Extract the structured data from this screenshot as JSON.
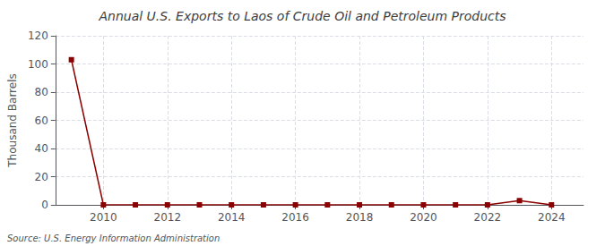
{
  "chart_data": {
    "type": "line",
    "title": "Annual U.S. Exports to Laos of Crude Oil and Petroleum Products",
    "ylabel": "Thousand Barrels",
    "annotation": "Source: U.S. Energy Information Administration",
    "x": [
      2009,
      2010,
      2011,
      2012,
      2013,
      2014,
      2015,
      2016,
      2017,
      2018,
      2019,
      2020,
      2021,
      2022,
      2023,
      2024
    ],
    "values": [
      103,
      0,
      0,
      0,
      0,
      0,
      0,
      0,
      0,
      0,
      0,
      0,
      0,
      0,
      3,
      0
    ],
    "color": "#8b0000",
    "marker": "square",
    "line_style": "solid",
    "xlim": [
      2008.5,
      2025.0
    ],
    "xticks": [
      2010,
      2012,
      2014,
      2016,
      2018,
      2020,
      2022,
      2024
    ],
    "ylim": [
      0,
      120
    ],
    "yticks": [
      0,
      20,
      40,
      60,
      80,
      100,
      120
    ],
    "grid": true
  }
}
